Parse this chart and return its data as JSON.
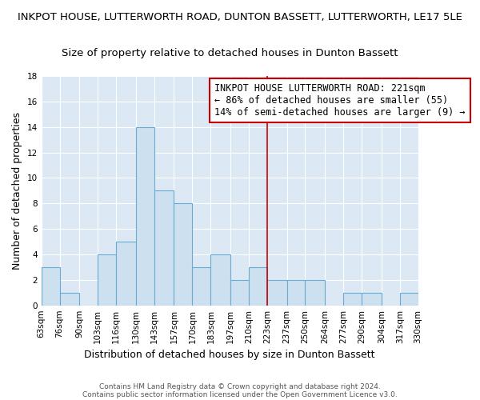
{
  "title": "INKPOT HOUSE, LUTTERWORTH ROAD, DUNTON BASSETT, LUTTERWORTH, LE17 5LE",
  "subtitle": "Size of property relative to detached houses in Dunton Bassett",
  "xlabel": "Distribution of detached houses by size in Dunton Bassett",
  "ylabel": "Number of detached properties",
  "bin_edges": [
    63,
    76,
    90,
    103,
    116,
    130,
    143,
    157,
    170,
    183,
    197,
    210,
    223,
    237,
    250,
    264,
    277,
    290,
    304,
    317,
    330
  ],
  "bar_heights": [
    3,
    1,
    0,
    4,
    5,
    14,
    9,
    8,
    3,
    4,
    2,
    3,
    2,
    2,
    2,
    0,
    1,
    1,
    0,
    1
  ],
  "bar_color": "#cce0f0",
  "bar_edge_color": "#6baad0",
  "vline_x": 223,
  "vline_color": "#cc0000",
  "ylim": [
    0,
    18
  ],
  "yticks": [
    0,
    2,
    4,
    6,
    8,
    10,
    12,
    14,
    16,
    18
  ],
  "background_color": "#dce9f5",
  "annotation_text": "INKPOT HOUSE LUTTERWORTH ROAD: 221sqm\n← 86% of detached houses are smaller (55)\n14% of semi-detached houses are larger (9) →",
  "footer_line1": "Contains HM Land Registry data © Crown copyright and database right 2024.",
  "footer_line2": "Contains public sector information licensed under the Open Government Licence v3.0.",
  "title_fontsize": 9.5,
  "subtitle_fontsize": 9.5,
  "axis_label_fontsize": 9,
  "tick_fontsize": 7.5,
  "annotation_fontsize": 8.5,
  "footer_fontsize": 6.5,
  "annotation_box_edge_color": "#cc0000"
}
